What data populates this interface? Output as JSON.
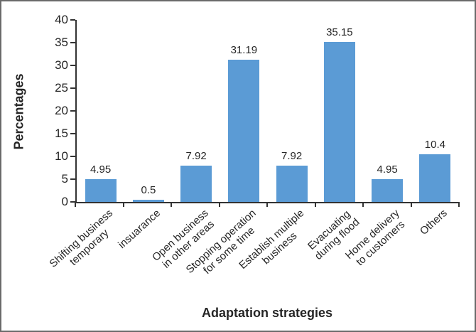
{
  "chart_data": {
    "type": "bar",
    "title": "",
    "xlabel": "Adaptation strategies",
    "ylabel": "Percentages",
    "categories": [
      "Shifting business\ntemporary",
      "insuarance",
      "Open business\nin other areas",
      "Stopping operation\nfor some time",
      "Establish multiple\nbusiness",
      "Evacuating\nduring flood",
      "Home delivery\nto customers",
      "Others"
    ],
    "values": [
      4.95,
      0.5,
      7.92,
      31.19,
      7.92,
      35.15,
      4.95,
      10.4
    ],
    "value_labels": [
      "4.95",
      "0.5",
      "7.92",
      "31.19",
      "7.92",
      "35.15",
      "4.95",
      "10.4"
    ],
    "ylim": [
      0,
      40
    ],
    "yticks": [
      0,
      5,
      10,
      15,
      20,
      25,
      30,
      35,
      40
    ],
    "grid": false,
    "legend": "none",
    "bar_color": "#5B9BD5",
    "axis_color": "#333333",
    "text_color": "#262626"
  }
}
